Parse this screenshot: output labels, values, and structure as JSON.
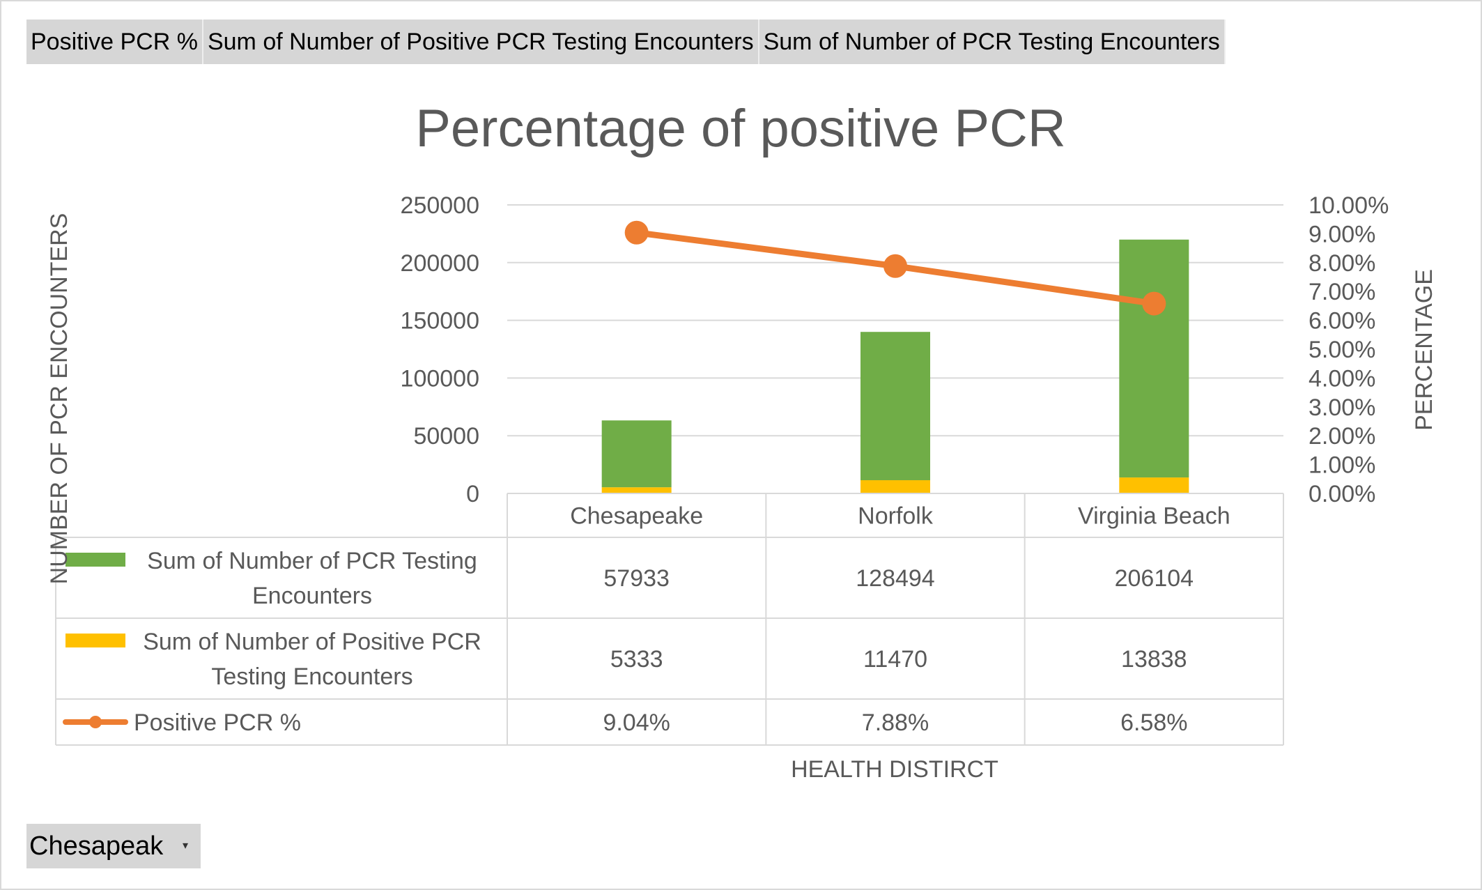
{
  "field_buttons": [
    "Positive PCR %",
    "Sum of Number of Positive PCR Testing Encounters",
    "Sum of Number of PCR Testing Encounters"
  ],
  "filter": {
    "selected": "Chesapeak",
    "arrow": "▾"
  },
  "colors": {
    "total": "#70ad47",
    "positive": "#ffc000",
    "line": "#ed7d31",
    "grid": "#d9d9d9",
    "text": "#595959",
    "title": "#595959"
  },
  "chart_data": {
    "type": "bar",
    "stacked": true,
    "title": "Percentage of positive PCR",
    "xlabel": "HEALTH DISTIRCT",
    "ylabel": "NUMBER OF PCR ENCOUNTERS",
    "y2label": "PERCENTAGE",
    "categories": [
      "Chesapeake",
      "Norfolk",
      "Virginia Beach"
    ],
    "ylim": [
      0,
      250000
    ],
    "yticks": [
      "0",
      "50000",
      "100000",
      "150000",
      "200000",
      "250000"
    ],
    "y2lim": [
      0,
      0.1
    ],
    "y2ticks": [
      "0.00%",
      "1.00%",
      "2.00%",
      "3.00%",
      "4.00%",
      "5.00%",
      "6.00%",
      "7.00%",
      "8.00%",
      "9.00%",
      "10.00%"
    ],
    "grid": true,
    "data_table": true,
    "series": [
      {
        "name": "Sum of Number of PCR Testing Encounters",
        "type": "bar",
        "axis": "left",
        "values": [
          57933,
          128494,
          206104
        ],
        "labels": [
          "57933",
          "128494",
          "206104"
        ]
      },
      {
        "name": "Sum of Number of Positive PCR Testing Encounters",
        "type": "bar",
        "axis": "left",
        "values": [
          5333,
          11470,
          13838
        ],
        "labels": [
          "5333",
          "11470",
          "13838"
        ]
      },
      {
        "name": "Positive PCR %",
        "type": "line",
        "axis": "right",
        "values": [
          0.0904,
          0.0788,
          0.0658
        ],
        "labels": [
          "9.04%",
          "7.88%",
          "6.58%"
        ]
      }
    ]
  }
}
